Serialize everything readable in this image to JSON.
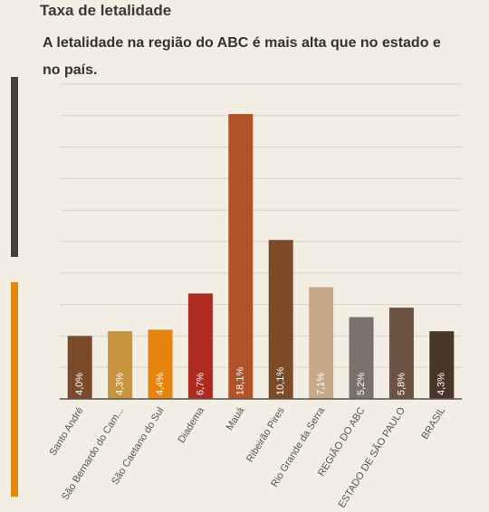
{
  "title": "Taxa de letalidade",
  "subtitle": "A letalidade na região do ABC é mais alta que no estado e no país.",
  "colors": {
    "background": "#f3eee3",
    "accent_dark": "#4a4239",
    "accent_orange": "#e8870f",
    "gridline": "#d8d2c4",
    "axis": "#555555"
  },
  "chart_data": {
    "type": "bar",
    "categories": [
      "Santo André",
      "São Bernardo do Cam...",
      "São Caetano do Sul",
      "Diadema",
      "Mauá",
      "Ribeirão Pires",
      "Rio Grande da Serra",
      "REGIÃO DO ABC",
      "ESTADO DE SÃO PAULO",
      "BRASIL"
    ],
    "values": [
      4.0,
      4.3,
      4.4,
      6.7,
      18.1,
      10.1,
      7.1,
      5.2,
      5.8,
      4.3
    ],
    "value_labels": [
      "4,0%",
      "4,3%",
      "4,4%",
      "6,7%",
      "18,1%",
      "10,1%",
      "7,1%",
      "5,2%",
      "5,8%",
      "4,3%"
    ],
    "bar_colors": [
      "#7a4a2b",
      "#c8953f",
      "#e5840f",
      "#ae2a20",
      "#b1522a",
      "#7d4b26",
      "#c9a887",
      "#7a7268",
      "#6b5242",
      "#4a3529"
    ],
    "ylim": [
      0,
      20
    ],
    "grid": true,
    "xlabel": "",
    "ylabel": ""
  }
}
